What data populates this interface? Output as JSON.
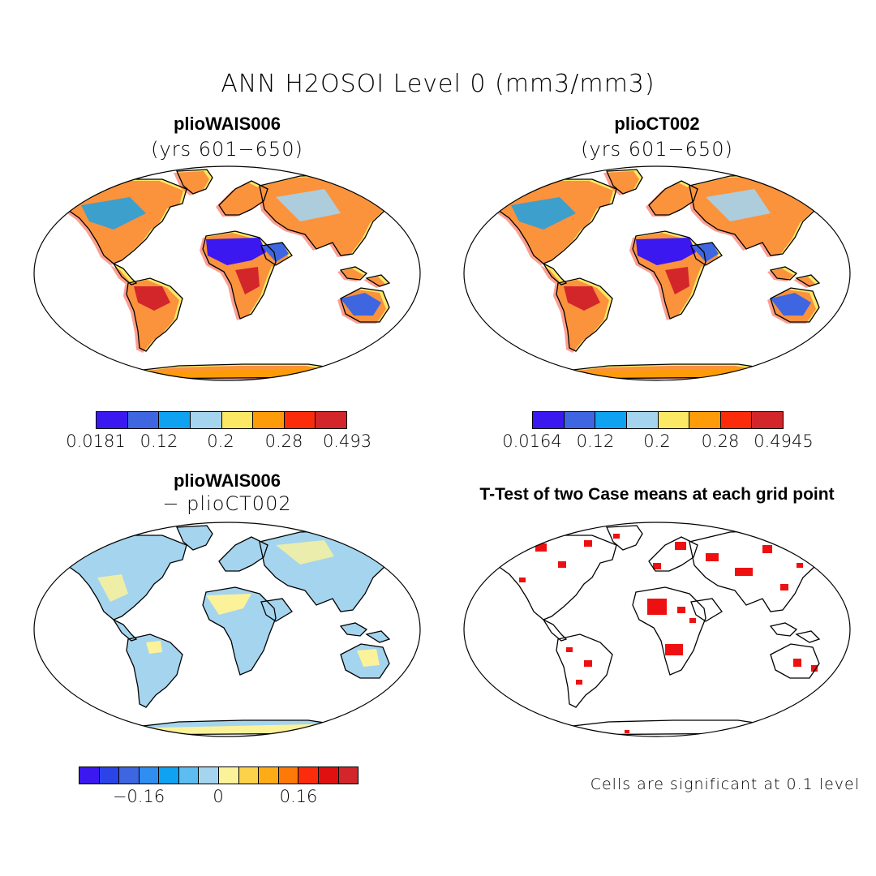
{
  "title": "ANN H2OSOI Level 0 (mm3/mm3)",
  "panels": {
    "top_left": {
      "case": "plioWAIS006",
      "years": "(yrs 601−650)"
    },
    "top_right": {
      "case": "plioCT002",
      "years": "(yrs 601−650)"
    },
    "bottom_left": {
      "case": "plioWAIS006",
      "minus": "− plioCT002"
    },
    "bottom_right": {
      "title": "T-Test of two Case means at each grid point",
      "note": "Cells are significant at 0.1 level"
    }
  },
  "colorbars": {
    "top_left": {
      "colors": [
        "#3b18f0",
        "#3d66e0",
        "#0ea2f0",
        "#a4d4ee",
        "#fbe865",
        "#fd9c08",
        "#fb2c0c",
        "#d2262a"
      ],
      "labels": [
        "0.0181",
        "0.12",
        "0.2",
        "0.28",
        "0.493"
      ]
    },
    "top_right": {
      "colors": [
        "#3b18f0",
        "#3d66e0",
        "#0ea2f0",
        "#a4d4ee",
        "#fbe865",
        "#fd9c08",
        "#fb2c0c",
        "#d2262a"
      ],
      "labels": [
        "0.0164",
        "0.12",
        "0.2",
        "0.28",
        "0.4945"
      ]
    },
    "bottom_left": {
      "colors": [
        "#3b18f0",
        "#2a44e8",
        "#3d66e0",
        "#2f8ef0",
        "#0ea2f0",
        "#5dbcf0",
        "#a4d4ee",
        "#fbf29a",
        "#fbd24a",
        "#fdac18",
        "#fd7a08",
        "#fb2c0c",
        "#e01010",
        "#d2262a"
      ],
      "labels": [
        "−0.16",
        "0",
        "0.16"
      ]
    }
  }
}
